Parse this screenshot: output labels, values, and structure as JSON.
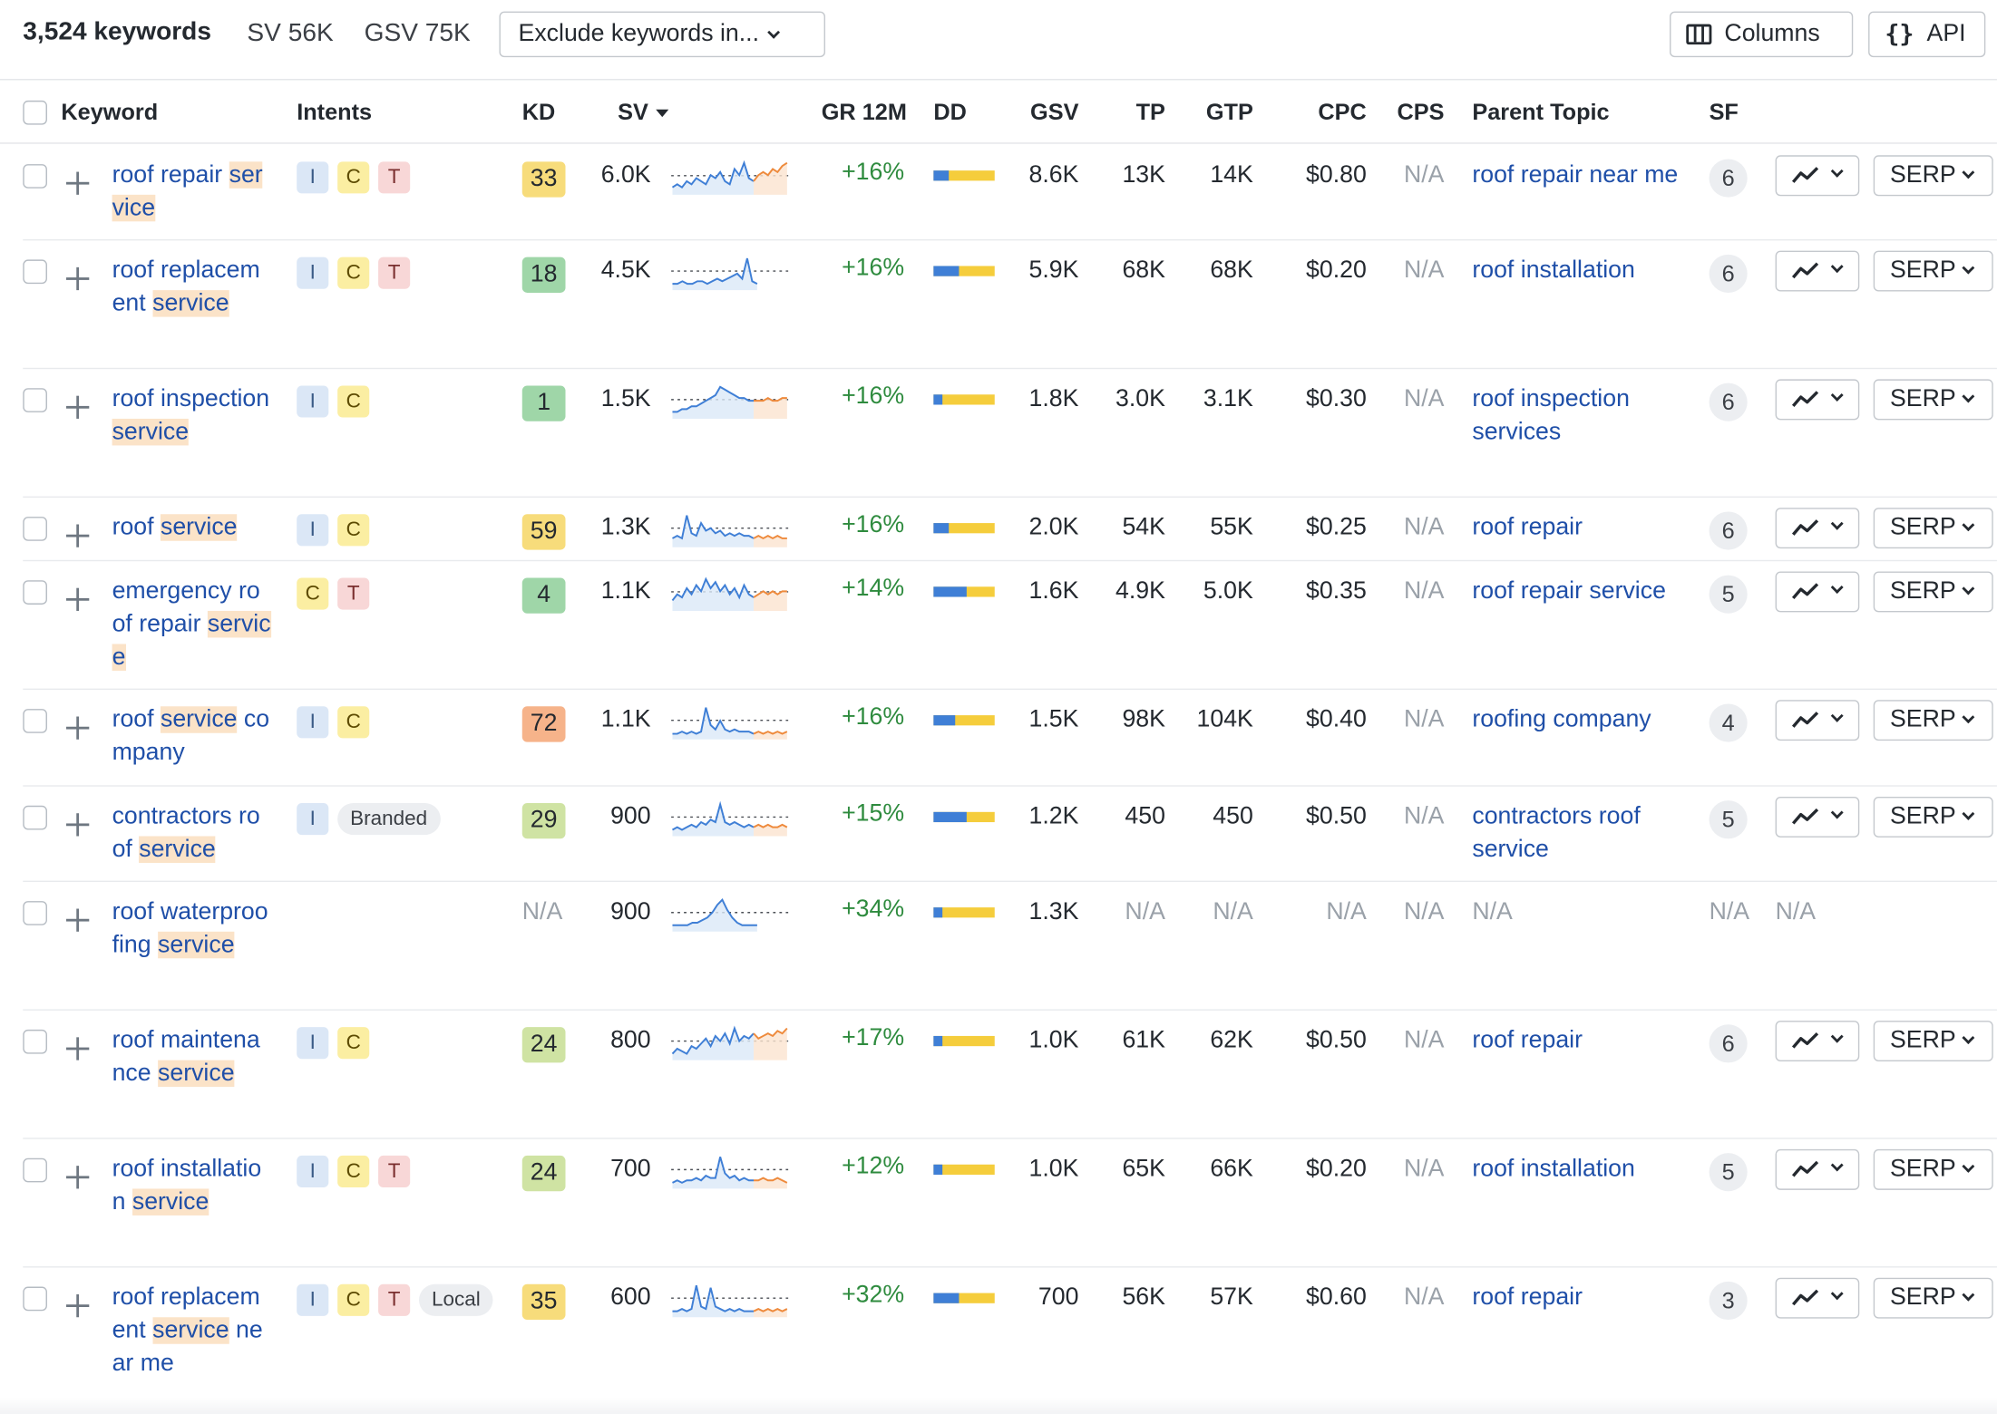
{
  "toolbar": {
    "keyword_count": "3,524 keywords",
    "sv_total": "SV 56K",
    "gsv_total": "GSV 75K",
    "exclude_label": "Exclude keywords in...",
    "columns_label": "Columns",
    "api_label": "API",
    "api_icon": "{}"
  },
  "columns": {
    "keyword": "Keyword",
    "intents": "Intents",
    "kd": "KD",
    "sv": "SV",
    "gr": "GR 12M",
    "dd": "DD",
    "gsv": "GSV",
    "tp": "TP",
    "gtp": "GTP",
    "cpc": "CPC",
    "cps": "CPS",
    "parent_topic": "Parent Topic",
    "sf": "SF"
  },
  "kd_colors": {
    "very_easy": "#9fd6a8",
    "easy": "#cfe3a3",
    "medium": "#f7dc7b",
    "hard": "#f6b38a"
  },
  "rows": [
    {
      "keyword_parts": [
        {
          "t": "roof repair "
        },
        {
          "t": "service",
          "hl": true
        }
      ],
      "intents": [
        "I",
        "C",
        "T"
      ],
      "kd": "33",
      "kd_level": "medium",
      "sv": "6.0K",
      "gr": "+16%",
      "dd_blue": 0.25,
      "gsv": "8.6K",
      "tp": "13K",
      "gtp": "14K",
      "cpc": "$0.80",
      "cps": "N/A",
      "parent_topic": "roof repair near me",
      "sf": "6",
      "serp": "SERP",
      "spark": [
        2,
        3,
        2,
        4,
        3,
        5,
        4,
        3,
        6,
        5,
        7,
        4,
        3,
        8,
        6,
        10,
        5,
        4
      ],
      "spark_forecast": [
        6,
        7,
        6,
        8,
        7,
        9,
        10
      ]
    },
    {
      "keyword_parts": [
        {
          "t": "roof replacement "
        },
        {
          "t": "service",
          "hl": true
        }
      ],
      "intents": [
        "I",
        "C",
        "T"
      ],
      "kd": "18",
      "kd_level": "very_easy",
      "sv": "4.5K",
      "gr": "+16%",
      "dd_blue": 0.42,
      "gsv": "5.9K",
      "tp": "68K",
      "gtp": "68K",
      "cpc": "$0.20",
      "cps": "N/A",
      "parent_topic": "roof installation",
      "sf": "6",
      "serp": "SERP",
      "spark": [
        2,
        2,
        3,
        2,
        2,
        3,
        3,
        2,
        3,
        4,
        3,
        4,
        5,
        6,
        4,
        12,
        3,
        2
      ],
      "spark_forecast": []
    },
    {
      "keyword_parts": [
        {
          "t": "roof inspection "
        },
        {
          "t": "service",
          "hl": true
        }
      ],
      "intents": [
        "I",
        "C"
      ],
      "kd": "1",
      "kd_level": "very_easy",
      "sv": "1.5K",
      "gr": "+16%",
      "dd_blue": 0.15,
      "gsv": "1.8K",
      "tp": "3.0K",
      "gtp": "3.1K",
      "cpc": "$0.30",
      "cps": "N/A",
      "parent_topic": "roof inspection services",
      "sf": "6",
      "serp": "SERP",
      "spark": [
        2,
        2,
        3,
        3,
        4,
        4,
        5,
        6,
        7,
        8,
        11,
        10,
        9,
        8,
        7,
        7,
        6,
        6
      ],
      "spark_forecast": [
        6,
        6,
        7,
        6,
        6,
        7,
        7
      ]
    },
    {
      "keyword_parts": [
        {
          "t": "roof "
        },
        {
          "t": "service",
          "hl": true
        }
      ],
      "intents": [
        "I",
        "C"
      ],
      "kd": "59",
      "kd_level": "medium",
      "sv": "1.3K",
      "gr": "+16%",
      "dd_blue": 0.25,
      "gsv": "2.0K",
      "tp": "54K",
      "gtp": "55K",
      "cpc": "$0.25",
      "cps": "N/A",
      "parent_topic": "roof repair",
      "sf": "6",
      "serp": "SERP",
      "spark": [
        3,
        4,
        3,
        12,
        5,
        4,
        9,
        6,
        7,
        5,
        6,
        4,
        5,
        4,
        5,
        4,
        4,
        3
      ],
      "spark_forecast": [
        4,
        3,
        4,
        3,
        4,
        3,
        3
      ]
    },
    {
      "keyword_parts": [
        {
          "t": "emergency roof repair "
        },
        {
          "t": "service",
          "hl": true
        }
      ],
      "intents": [
        "C",
        "T"
      ],
      "kd": "4",
      "kd_level": "very_easy",
      "sv": "1.1K",
      "gr": "+14%",
      "dd_blue": 0.55,
      "gsv": "1.6K",
      "tp": "4.9K",
      "gtp": "5.0K",
      "cpc": "$0.35",
      "cps": "N/A",
      "parent_topic": "roof repair service",
      "sf": "5",
      "serp": "SERP",
      "spark": [
        3,
        5,
        4,
        7,
        5,
        8,
        6,
        10,
        7,
        9,
        6,
        8,
        5,
        7,
        4,
        8,
        5,
        4
      ],
      "spark_forecast": [
        5,
        6,
        5,
        6,
        5,
        6,
        6
      ]
    },
    {
      "keyword_parts": [
        {
          "t": "roof "
        },
        {
          "t": "service",
          "hl": true
        },
        {
          "t": " company"
        }
      ],
      "intents": [
        "I",
        "C"
      ],
      "kd": "72",
      "kd_level": "hard",
      "sv": "1.1K",
      "gr": "+16%",
      "dd_blue": 0.35,
      "gsv": "1.5K",
      "tp": "98K",
      "gtp": "104K",
      "cpc": "$0.40",
      "cps": "N/A",
      "parent_topic": "roofing company",
      "sf": "4",
      "serp": "SERP",
      "spark": [
        2,
        2,
        3,
        2,
        3,
        2,
        3,
        14,
        6,
        4,
        8,
        4,
        3,
        4,
        3,
        3,
        3,
        2
      ],
      "spark_forecast": [
        3,
        2,
        3,
        2,
        3,
        2,
        3
      ]
    },
    {
      "keyword_parts": [
        {
          "t": "contractors roof "
        },
        {
          "t": "service",
          "hl": true
        }
      ],
      "intents": [
        "I"
      ],
      "tag": "Branded",
      "kd": "29",
      "kd_level": "easy",
      "sv": "900",
      "gr": "+15%",
      "dd_blue": 0.55,
      "gsv": "1.2K",
      "tp": "450",
      "gtp": "450",
      "cpc": "$0.50",
      "cps": "N/A",
      "parent_topic": "contractors roof service",
      "sf": "5",
      "serp": "SERP",
      "spark": [
        2,
        3,
        2,
        3,
        4,
        3,
        5,
        4,
        6,
        5,
        12,
        5,
        4,
        5,
        4,
        3,
        4,
        3
      ],
      "spark_forecast": [
        4,
        3,
        4,
        3,
        3,
        4,
        3
      ]
    },
    {
      "keyword_parts": [
        {
          "t": "roof waterproofing "
        },
        {
          "t": "service",
          "hl": true
        }
      ],
      "intents": [],
      "kd": "N/A",
      "kd_level": "none",
      "sv": "900",
      "gr": "+34%",
      "dd_blue": 0.15,
      "gsv": "1.3K",
      "tp": "N/A",
      "gtp": "N/A",
      "cpc": "N/A",
      "cps": "N/A",
      "parent_topic": "N/A",
      "sf": "N/A",
      "serp": "N/A",
      "spark": [
        2,
        2,
        2,
        2,
        3,
        3,
        4,
        5,
        7,
        10,
        12,
        8,
        5,
        3,
        2,
        2,
        2,
        2
      ],
      "spark_forecast": []
    },
    {
      "keyword_parts": [
        {
          "t": "roof maintenance "
        },
        {
          "t": "service",
          "hl": true
        }
      ],
      "intents": [
        "I",
        "C"
      ],
      "kd": "24",
      "kd_level": "easy",
      "sv": "800",
      "gr": "+17%",
      "dd_blue": 0.15,
      "gsv": "1.0K",
      "tp": "61K",
      "gtp": "62K",
      "cpc": "$0.50",
      "cps": "N/A",
      "parent_topic": "roof repair",
      "sf": "6",
      "serp": "SERP",
      "spark": [
        2,
        4,
        3,
        2,
        5,
        4,
        6,
        8,
        5,
        9,
        7,
        10,
        6,
        12,
        7,
        9,
        8,
        10
      ],
      "spark_forecast": [
        8,
        9,
        10,
        9,
        11,
        10,
        12
      ]
    },
    {
      "keyword_parts": [
        {
          "t": "roof installation "
        },
        {
          "t": "service",
          "hl": true
        }
      ],
      "intents": [
        "I",
        "C",
        "T"
      ],
      "kd": "24",
      "kd_level": "easy",
      "sv": "700",
      "gr": "+12%",
      "dd_blue": 0.15,
      "gsv": "1.0K",
      "tp": "65K",
      "gtp": "66K",
      "cpc": "$0.20",
      "cps": "N/A",
      "parent_topic": "roof installation",
      "sf": "5",
      "serp": "SERP",
      "spark": [
        2,
        3,
        2,
        3,
        3,
        4,
        3,
        5,
        4,
        4,
        13,
        6,
        4,
        5,
        3,
        4,
        3,
        3
      ],
      "spark_forecast": [
        3,
        4,
        3,
        3,
        4,
        3,
        2
      ]
    },
    {
      "keyword_parts": [
        {
          "t": "roof replacement "
        },
        {
          "t": "service",
          "hl": true
        },
        {
          "t": " near me"
        }
      ],
      "intents": [
        "I",
        "C",
        "T"
      ],
      "tag": "Local",
      "kd": "35",
      "kd_level": "medium",
      "sv": "600",
      "gr": "+32%",
      "dd_blue": 0.42,
      "gsv": "700",
      "tp": "56K",
      "gtp": "57K",
      "cpc": "$0.60",
      "cps": "N/A",
      "parent_topic": "roof repair",
      "sf": "3",
      "serp": "SERP",
      "spark": [
        2,
        2,
        3,
        2,
        3,
        13,
        4,
        3,
        12,
        4,
        3,
        2,
        3,
        2,
        3,
        2,
        2,
        2
      ],
      "spark_forecast": [
        3,
        2,
        3,
        2,
        3,
        2,
        3
      ]
    }
  ]
}
